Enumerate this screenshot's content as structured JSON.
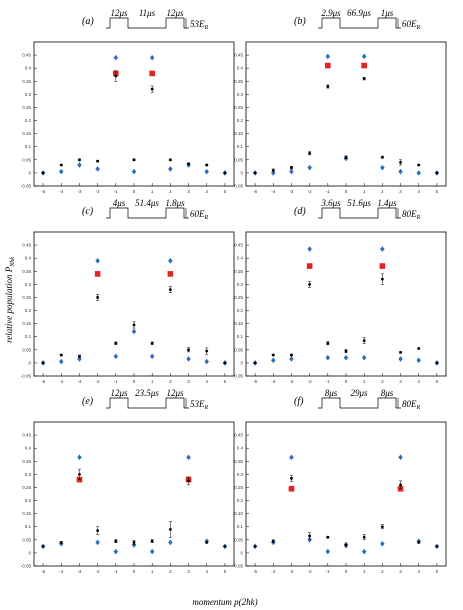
{
  "figure": {
    "xlabel": "momentum p(2ħk)",
    "ylabel": "relative population P",
    "ylabel_sub": "Nħk"
  },
  "chart_data": [
    {
      "type": "scatter",
      "panel_label": "(a)",
      "pulse": {
        "t1": "12μs",
        "t2": "11μs",
        "t3": "12μs",
        "depth": "53E",
        "depth_sub": "R"
      },
      "xlim": [
        -5.5,
        5.5
      ],
      "ylim": [
        -0.05,
        0.5
      ],
      "xticks": [
        "-5",
        "-4",
        "-3",
        "-2",
        "-1",
        "0",
        "1",
        "2",
        "3",
        "4",
        "5"
      ],
      "yticks": [
        "-0.05",
        "0",
        "0.05",
        "0.1",
        "0.15",
        "0.2",
        "0.25",
        "0.3",
        "0.35",
        "0.4",
        "0.45"
      ],
      "x": [
        -5,
        -4,
        -3,
        -2,
        -1,
        0,
        1,
        2,
        3,
        4,
        5
      ],
      "series": [
        {
          "marker": "diamond",
          "color": "#2a6ebd",
          "values": [
            0.0,
            0.005,
            0.03,
            0.015,
            0.44,
            0.005,
            0.44,
            0.015,
            0.03,
            0.005,
            0.0
          ]
        },
        {
          "marker": "square",
          "color": "#e32222",
          "points": [
            [
              -1,
              0.38
            ],
            [
              1,
              0.38
            ]
          ]
        },
        {
          "marker": "dot",
          "color": "#000000",
          "values": [
            0.0,
            0.03,
            0.05,
            0.045,
            0.37,
            0.05,
            0.32,
            0.05,
            0.035,
            0.03,
            0.0
          ],
          "errors": [
            0,
            0.003,
            0.003,
            0.003,
            0.02,
            0.003,
            0.012,
            0.003,
            0.003,
            0.003,
            0
          ]
        }
      ]
    },
    {
      "type": "scatter",
      "panel_label": "(b)",
      "pulse": {
        "t1": "2.9μs",
        "t2": "66.9μs",
        "t3": "1μs",
        "depth": "60E",
        "depth_sub": "R"
      },
      "xlim": [
        -5.5,
        5.5
      ],
      "ylim": [
        -0.05,
        0.5
      ],
      "xticks": [
        "-5",
        "-4",
        "-3",
        "-2",
        "-1",
        "0",
        "1",
        "2",
        "3",
        "4",
        "5"
      ],
      "yticks": [
        "-0.05",
        "0",
        "0.05",
        "0.1",
        "0.15",
        "0.2",
        "0.25",
        "0.3",
        "0.35",
        "0.4",
        "0.45"
      ],
      "x": [
        -5,
        -4,
        -3,
        -2,
        -1,
        0,
        1,
        2,
        3,
        4,
        5
      ],
      "series": [
        {
          "marker": "diamond",
          "color": "#2a6ebd",
          "values": [
            0.0,
            0.0,
            0.005,
            0.02,
            0.445,
            0.055,
            0.445,
            0.02,
            0.005,
            0.0,
            0.0
          ]
        },
        {
          "marker": "square",
          "color": "#e32222",
          "points": [
            [
              -1,
              0.41
            ],
            [
              1,
              0.41
            ]
          ]
        },
        {
          "marker": "dot",
          "color": "#000000",
          "values": [
            0.0,
            0.01,
            0.02,
            0.075,
            0.33,
            0.06,
            0.36,
            0.06,
            0.04,
            0.03,
            0.0
          ],
          "errors": [
            0,
            0.005,
            0.005,
            0.006,
            0.006,
            0.005,
            0.005,
            0.004,
            0.01,
            0.003,
            0
          ]
        }
      ]
    },
    {
      "type": "scatter",
      "panel_label": "(c)",
      "pulse": {
        "t1": "4μs",
        "t2": "51.4μs",
        "t3": "1.8μs",
        "depth": "60E",
        "depth_sub": "R"
      },
      "xlim": [
        -5.5,
        5.5
      ],
      "ylim": [
        -0.05,
        0.5
      ],
      "xticks": [
        "-5",
        "-4",
        "-3",
        "-2",
        "-1",
        "0",
        "1",
        "2",
        "3",
        "4",
        "5"
      ],
      "yticks": [
        "-0.05",
        "0",
        "0.05",
        "0.1",
        "0.15",
        "0.2",
        "0.25",
        "0.3",
        "0.35",
        "0.4",
        "0.45"
      ],
      "x": [
        -5,
        -4,
        -3,
        -2,
        -1,
        0,
        1,
        2,
        3,
        4,
        5
      ],
      "series": [
        {
          "marker": "diamond",
          "color": "#2a6ebd",
          "values": [
            0.0,
            0.005,
            0.015,
            0.39,
            0.025,
            0.12,
            0.025,
            0.39,
            0.015,
            0.005,
            0.0
          ]
        },
        {
          "marker": "square",
          "color": "#e32222",
          "points": [
            [
              -2,
              0.34
            ],
            [
              2,
              0.34
            ]
          ]
        },
        {
          "marker": "dot",
          "color": "#000000",
          "values": [
            0.0,
            0.03,
            0.025,
            0.25,
            0.075,
            0.145,
            0.075,
            0.28,
            0.05,
            0.045,
            0.0
          ],
          "errors": [
            0,
            0.003,
            0.005,
            0.012,
            0.005,
            0.012,
            0.005,
            0.012,
            0.008,
            0.012,
            0
          ]
        }
      ]
    },
    {
      "type": "scatter",
      "panel_label": "(d)",
      "pulse": {
        "t1": "3.6μs",
        "t2": "51.6μs",
        "t3": "1.4μs",
        "depth": "80E",
        "depth_sub": "R"
      },
      "xlim": [
        -5.5,
        5.5
      ],
      "ylim": [
        -0.05,
        0.5
      ],
      "xticks": [
        "-5",
        "-4",
        "-3",
        "-2",
        "-1",
        "0",
        "1",
        "2",
        "3",
        "4",
        "5"
      ],
      "yticks": [
        "-0.05",
        "0",
        "0.05",
        "0.1",
        "0.15",
        "0.2",
        "0.25",
        "0.3",
        "0.35",
        "0.4",
        "0.45"
      ],
      "x": [
        -5,
        -4,
        -3,
        -2,
        -1,
        0,
        1,
        2,
        3,
        4,
        5
      ],
      "series": [
        {
          "marker": "diamond",
          "color": "#2a6ebd",
          "values": [
            0.0,
            0.01,
            0.015,
            0.435,
            0.02,
            0.02,
            0.02,
            0.435,
            0.015,
            0.01,
            0.0
          ]
        },
        {
          "marker": "square",
          "color": "#e32222",
          "points": [
            [
              -2,
              0.37
            ],
            [
              2,
              0.37
            ]
          ]
        },
        {
          "marker": "dot",
          "color": "#000000",
          "values": [
            0.0,
            0.03,
            0.03,
            0.3,
            0.075,
            0.045,
            0.085,
            0.32,
            0.04,
            0.055,
            0.0
          ],
          "errors": [
            0,
            0.003,
            0.003,
            0.012,
            0.006,
            0.006,
            0.012,
            0.02,
            0.003,
            0.003,
            0
          ]
        }
      ]
    },
    {
      "type": "scatter",
      "panel_label": "(e)",
      "pulse": {
        "t1": "12μs",
        "t2": "23.5μs",
        "t3": "12μs",
        "depth": "53E",
        "depth_sub": "R"
      },
      "xlim": [
        -5.5,
        5.5
      ],
      "ylim": [
        -0.05,
        0.5
      ],
      "xticks": [
        "-5",
        "-4",
        "-3",
        "-2",
        "-1",
        "0",
        "1",
        "2",
        "3",
        "4",
        "5"
      ],
      "yticks": [
        "-0.05",
        "0",
        "0.05",
        "0.1",
        "0.15",
        "0.2",
        "0.25",
        "0.3",
        "0.35",
        "0.4",
        "0.45"
      ],
      "x": [
        -5,
        -4,
        -3,
        -2,
        -1,
        0,
        1,
        2,
        3,
        4,
        5
      ],
      "series": [
        {
          "marker": "diamond",
          "color": "#2a6ebd",
          "values": [
            0.025,
            0.035,
            0.365,
            0.04,
            0.005,
            0.03,
            0.005,
            0.04,
            0.365,
            0.045,
            0.025
          ]
        },
        {
          "marker": "square",
          "color": "#e32222",
          "points": [
            [
              -3,
              0.28
            ],
            [
              3,
              0.28
            ]
          ]
        },
        {
          "marker": "dot",
          "color": "#000000",
          "values": [
            0.025,
            0.04,
            0.3,
            0.085,
            0.045,
            0.04,
            0.045,
            0.09,
            0.275,
            0.04,
            0.025
          ],
          "errors": [
            0,
            0.003,
            0.02,
            0.015,
            0.006,
            0.008,
            0.006,
            0.03,
            0.015,
            0.003,
            0
          ]
        }
      ]
    },
    {
      "type": "scatter",
      "panel_label": "(f)",
      "pulse": {
        "t1": "8μs",
        "t2": "29μs",
        "t3": "8μs",
        "depth": "80E",
        "depth_sub": "R"
      },
      "xlim": [
        -5.5,
        5.5
      ],
      "ylim": [
        -0.05,
        0.5
      ],
      "xticks": [
        "-5",
        "-4",
        "-3",
        "-2",
        "-1",
        "0",
        "1",
        "2",
        "3",
        "4",
        "5"
      ],
      "yticks": [
        "-0.05",
        "0",
        "0.05",
        "0.1",
        "0.15",
        "0.2",
        "0.25",
        "0.3",
        "0.35",
        "0.4",
        "0.45"
      ],
      "x": [
        -5,
        -4,
        -3,
        -2,
        -1,
        0,
        1,
        2,
        3,
        4,
        5
      ],
      "series": [
        {
          "marker": "diamond",
          "color": "#2a6ebd",
          "values": [
            0.025,
            0.04,
            0.365,
            0.05,
            0.005,
            0.03,
            0.005,
            0.035,
            0.365,
            0.045,
            0.025
          ]
        },
        {
          "marker": "square",
          "color": "#e32222",
          "points": [
            [
              -3,
              0.245
            ],
            [
              3,
              0.245
            ]
          ]
        },
        {
          "marker": "dot",
          "color": "#000000",
          "values": [
            0.025,
            0.045,
            0.285,
            0.065,
            0.06,
            0.03,
            0.06,
            0.1,
            0.26,
            0.04,
            0.025
          ],
          "errors": [
            0,
            0.005,
            0.012,
            0.012,
            0.003,
            0.008,
            0.01,
            0.008,
            0.015,
            0.003,
            0
          ]
        }
      ]
    }
  ]
}
